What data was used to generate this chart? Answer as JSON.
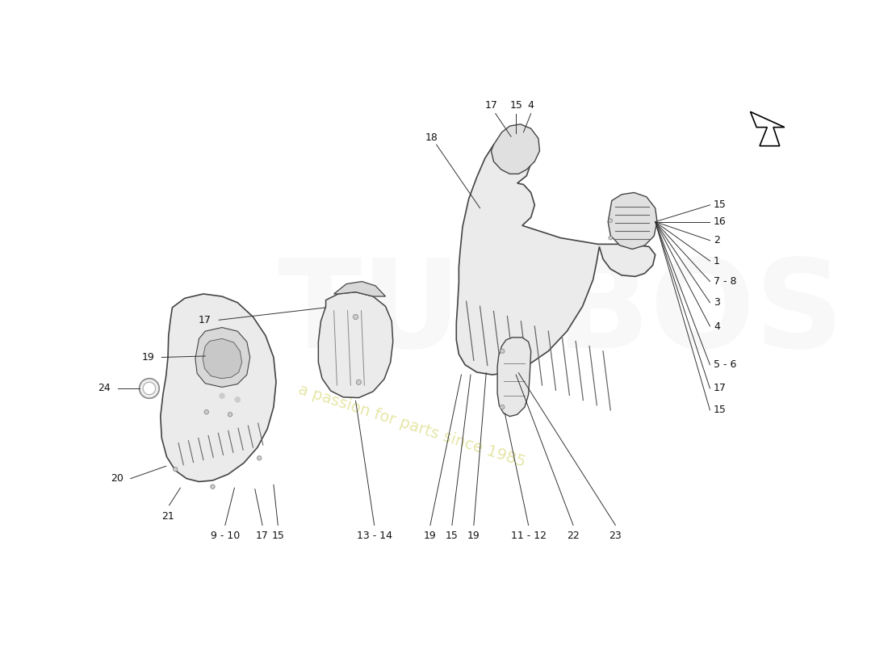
{
  "bg_color": "#ffffff",
  "fig_width": 11.0,
  "fig_height": 8.0,
  "dpi": 100
}
